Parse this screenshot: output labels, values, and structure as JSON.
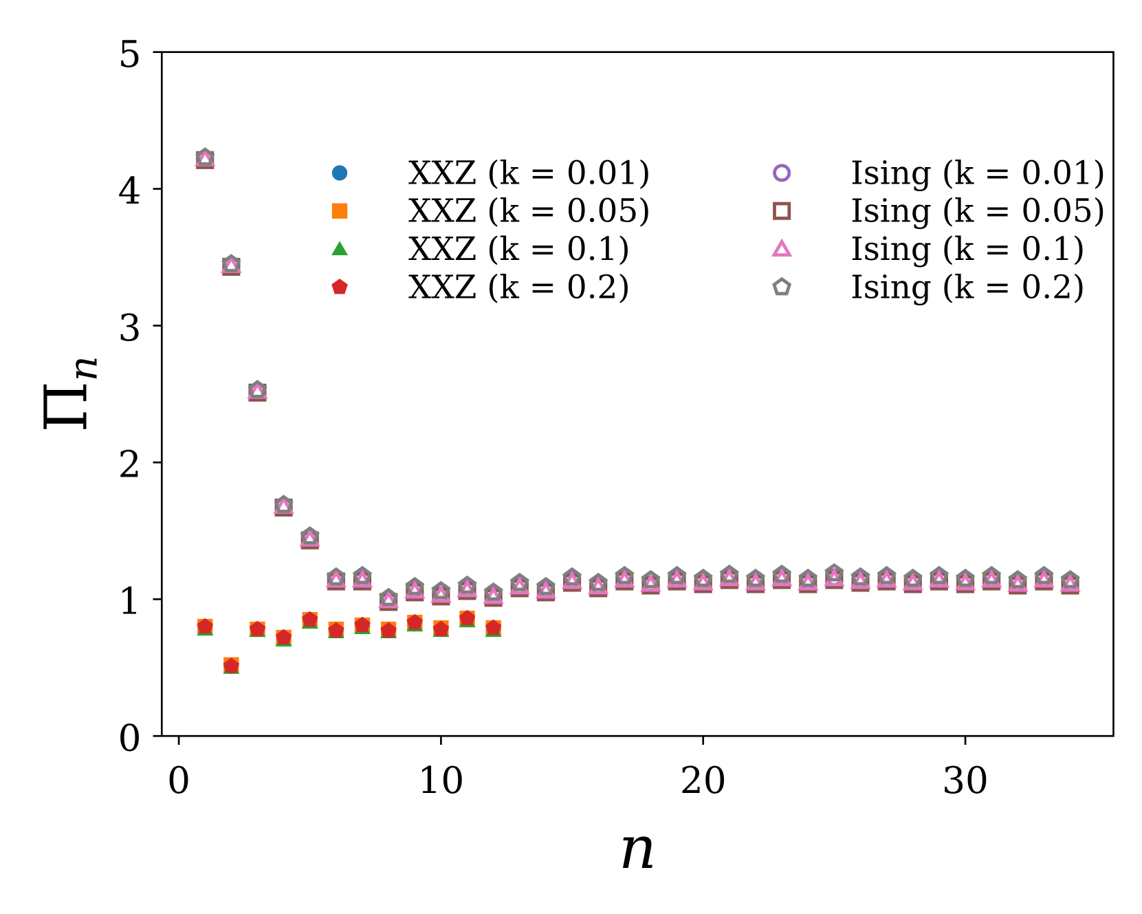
{
  "chart_data": {
    "type": "scatter",
    "title": "",
    "xlabel": "n",
    "ylabel": "Π_n",
    "xlim": [
      -0.65,
      35.65
    ],
    "ylim": [
      0,
      5
    ],
    "xticks": [
      0,
      10,
      20,
      30
    ],
    "yticks": [
      0,
      1,
      2,
      3,
      4,
      5
    ],
    "grid": false,
    "legend_placement": "top-right",
    "series": [
      {
        "name": "XXZ (k = 0.01)",
        "marker": "circle",
        "filled": true,
        "color": "#1f77b4",
        "x": [
          1,
          2,
          3,
          4,
          5,
          6,
          7,
          8,
          9,
          10,
          11,
          12
        ],
        "y": [
          0.79,
          0.51,
          0.78,
          0.71,
          0.85,
          0.77,
          0.8,
          0.77,
          0.82,
          0.78,
          0.86,
          0.78
        ]
      },
      {
        "name": "XXZ (k = 0.05)",
        "marker": "square",
        "filled": true,
        "color": "#ff7f0e",
        "x": [
          1,
          2,
          3,
          4,
          5,
          6,
          7,
          8,
          9,
          10,
          11,
          12
        ],
        "y": [
          0.8,
          0.52,
          0.78,
          0.72,
          0.85,
          0.78,
          0.81,
          0.78,
          0.83,
          0.79,
          0.86,
          0.79
        ]
      },
      {
        "name": "XXZ (k = 0.1)",
        "marker": "triangle",
        "filled": true,
        "color": "#2ca02c",
        "x": [
          1,
          2,
          3,
          4,
          5,
          6,
          7,
          8,
          9,
          10,
          11,
          12
        ],
        "y": [
          0.78,
          0.5,
          0.77,
          0.7,
          0.83,
          0.76,
          0.79,
          0.76,
          0.81,
          0.77,
          0.84,
          0.77
        ]
      },
      {
        "name": "XXZ (k = 0.2)",
        "marker": "pentagon",
        "filled": true,
        "color": "#d62728",
        "x": [
          1,
          2,
          3,
          4,
          5,
          6,
          7,
          8,
          9,
          10,
          11,
          12
        ],
        "y": [
          0.8,
          0.51,
          0.78,
          0.72,
          0.85,
          0.77,
          0.81,
          0.77,
          0.83,
          0.78,
          0.86,
          0.79
        ]
      },
      {
        "name": "Ising (k = 0.01)",
        "marker": "circle",
        "filled": false,
        "color": "#9467bd",
        "x": [
          1,
          2,
          3,
          4,
          5,
          6,
          7,
          8,
          9,
          10,
          11,
          12,
          13,
          14,
          15,
          16,
          17,
          18,
          19,
          20,
          21,
          22,
          23,
          24,
          25,
          26,
          27,
          28,
          29,
          30,
          31,
          32,
          33,
          34
        ],
        "y": [
          4.22,
          3.44,
          2.52,
          1.68,
          1.44,
          1.14,
          1.15,
          0.99,
          1.07,
          1.03,
          1.08,
          1.03,
          1.1,
          1.07,
          1.14,
          1.1,
          1.15,
          1.11,
          1.15,
          1.13,
          1.16,
          1.13,
          1.16,
          1.13,
          1.16,
          1.14,
          1.15,
          1.13,
          1.15,
          1.13,
          1.15,
          1.12,
          1.15,
          1.12
        ]
      },
      {
        "name": "Ising (k = 0.05)",
        "marker": "square",
        "filled": false,
        "color": "#8c564b",
        "x": [
          1,
          2,
          3,
          4,
          5,
          6,
          7,
          8,
          9,
          10,
          11,
          12,
          13,
          14,
          15,
          16,
          17,
          18,
          19,
          20,
          21,
          22,
          23,
          24,
          25,
          26,
          27,
          28,
          29,
          30,
          31,
          32,
          33,
          34
        ],
        "y": [
          4.21,
          3.43,
          2.51,
          1.67,
          1.43,
          1.13,
          1.13,
          0.98,
          1.05,
          1.02,
          1.06,
          1.01,
          1.08,
          1.05,
          1.12,
          1.08,
          1.13,
          1.1,
          1.13,
          1.11,
          1.14,
          1.11,
          1.14,
          1.11,
          1.14,
          1.12,
          1.13,
          1.11,
          1.13,
          1.11,
          1.13,
          1.1,
          1.13,
          1.1
        ]
      },
      {
        "name": "Ising (k = 0.1)",
        "marker": "triangle",
        "filled": false,
        "color": "#e377c2",
        "x": [
          1,
          2,
          3,
          4,
          5,
          6,
          7,
          8,
          9,
          10,
          11,
          12,
          13,
          14,
          15,
          16,
          17,
          18,
          19,
          20,
          21,
          22,
          23,
          24,
          25,
          26,
          27,
          28,
          29,
          30,
          31,
          32,
          33,
          34
        ],
        "y": [
          4.22,
          3.44,
          2.52,
          1.68,
          1.44,
          1.14,
          1.14,
          0.99,
          1.06,
          1.03,
          1.07,
          1.02,
          1.09,
          1.06,
          1.13,
          1.09,
          1.14,
          1.11,
          1.14,
          1.12,
          1.15,
          1.12,
          1.15,
          1.12,
          1.15,
          1.13,
          1.14,
          1.12,
          1.14,
          1.12,
          1.14,
          1.11,
          1.14,
          1.11
        ]
      },
      {
        "name": "Ising (k = 0.2)",
        "marker": "pentagon",
        "filled": false,
        "color": "#7f7f7f",
        "x": [
          1,
          2,
          3,
          4,
          5,
          6,
          7,
          8,
          9,
          10,
          11,
          12,
          13,
          14,
          15,
          16,
          17,
          18,
          19,
          20,
          21,
          22,
          23,
          24,
          25,
          26,
          27,
          28,
          29,
          30,
          31,
          32,
          33,
          34
        ],
        "y": [
          4.23,
          3.45,
          2.53,
          1.69,
          1.46,
          1.16,
          1.17,
          1.01,
          1.09,
          1.06,
          1.1,
          1.05,
          1.12,
          1.09,
          1.16,
          1.12,
          1.17,
          1.14,
          1.17,
          1.15,
          1.18,
          1.15,
          1.18,
          1.15,
          1.19,
          1.16,
          1.17,
          1.15,
          1.17,
          1.15,
          1.17,
          1.14,
          1.17,
          1.14
        ]
      }
    ]
  }
}
